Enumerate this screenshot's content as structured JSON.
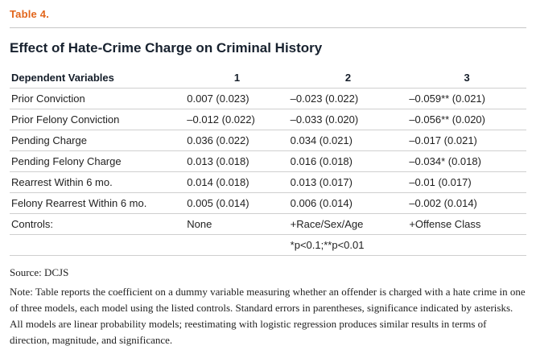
{
  "colors": {
    "accent_orange": "#e2661c",
    "title_dark": "#18222f",
    "rule_gray": "#cfcfcf"
  },
  "table_label": "Table 4.",
  "title": "Effect of Hate-Crime Charge on Criminal History",
  "table": {
    "headers": [
      "Dependent Variables",
      "1",
      "2",
      "3"
    ],
    "rows": [
      [
        "Prior Conviction",
        "0.007 (0.023)",
        "–0.023 (0.022)",
        "–0.059** (0.021)"
      ],
      [
        "Prior Felony Conviction",
        "–0.012 (0.022)",
        "–0.033 (0.020)",
        "–0.056** (0.020)"
      ],
      [
        "Pending Charge",
        "0.036 (0.022)",
        "0.034 (0.021)",
        "–0.017 (0.021)"
      ],
      [
        "Pending Felony Charge",
        "0.013 (0.018)",
        "0.016 (0.018)",
        "–0.034* (0.018)"
      ],
      [
        "Rearrest Within 6 mo.",
        "0.014 (0.018)",
        "0.013 (0.017)",
        "–0.01 (0.017)"
      ],
      [
        "Felony Rearrest Within 6 mo.",
        "0.005 (0.014)",
        "0.006 (0.014)",
        "–0.002 (0.014)"
      ],
      [
        "Controls:",
        "None",
        "+Race/Sex/Age",
        "+Offense Class"
      ]
    ],
    "significance_note": "*p<0.1;**p<0.01"
  },
  "source": "Source: DCJS",
  "note": "Note: Table reports the coefficient on a dummy variable measuring whether an offender is charged with a hate crime in one of three models, each model using the listed controls. Standard errors in parentheses, significance indicated by asterisks. All models are linear probability models; reestimating with logistic regression produces similar results in terms of direction, magnitude, and significance."
}
